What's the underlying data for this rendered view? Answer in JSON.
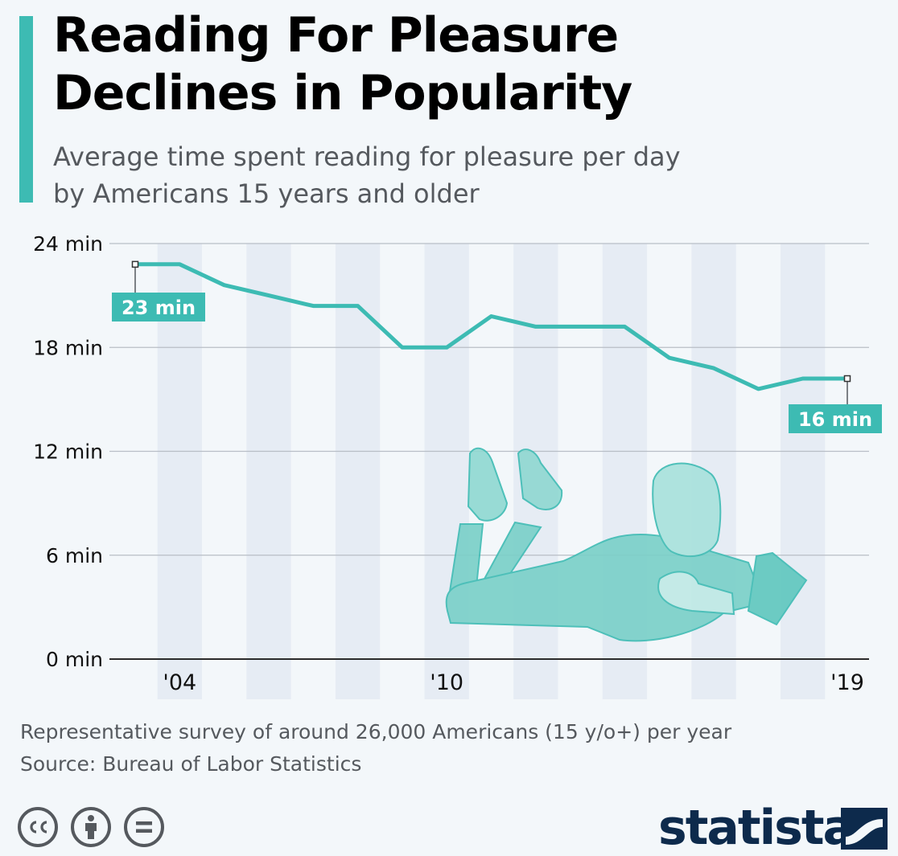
{
  "header": {
    "title_line1": "Reading For Pleasure",
    "title_line2": "Declines in Popularity",
    "subtitle_line1": "Average time spent reading for pleasure per day",
    "subtitle_line2": "by Americans 15 years and older",
    "accent_color": "#3dbbb3"
  },
  "chart_data": {
    "type": "line",
    "title": "Reading For Pleasure Declines in Popularity",
    "subtitle": "Average time spent reading for pleasure per day by Americans 15 years and older",
    "x": [
      2003,
      2004,
      2005,
      2006,
      2007,
      2008,
      2009,
      2010,
      2011,
      2012,
      2013,
      2014,
      2015,
      2016,
      2017,
      2018,
      2019
    ],
    "series": [
      {
        "values": [
          22.8,
          22.8,
          21.6,
          21.0,
          20.4,
          20.4,
          18.0,
          18.0,
          19.8,
          19.2,
          19.2,
          19.2,
          17.4,
          16.8,
          15.6,
          16.2,
          16.2
        ],
        "color": "#3dbbb3"
      }
    ],
    "x_tick_labels": [
      "'04",
      "'10",
      "'19"
    ],
    "y_tick_labels": [
      "0 min",
      "6 min",
      "12 min",
      "18 min",
      "24 min"
    ],
    "ylim": [
      0,
      24
    ],
    "grid": true,
    "callouts": [
      {
        "label": "23 min"
      },
      {
        "label": "16 min"
      }
    ]
  },
  "footer": {
    "note": "Representative survey of around 26,000 Americans (15 y/o+) per year",
    "source": "Source: Bureau of Labor Statistics",
    "brand": "statista",
    "license_icons": [
      "cc-icon",
      "person-icon",
      "equals-icon"
    ]
  }
}
